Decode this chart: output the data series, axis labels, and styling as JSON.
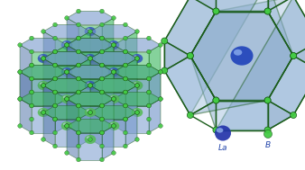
{
  "bg_color": "#ffffff",
  "left_panel": {
    "cage_face_color_blue": "#7799cc",
    "cage_face_color_green": "#44bb66",
    "cage_face_color_blue2": "#5577aa",
    "cage_face_color_green2": "#33aa55",
    "cage_edge_color": "#1a5c1a",
    "la_sphere_color": "#3355bb",
    "la_sphere_highlight": "#ccddf0",
    "b_green_sphere": "#44cc44",
    "b_green_highlight": "#aaffaa"
  },
  "right_panel": {
    "cage_face_color": "#88aacc",
    "cage_face_color2": "#99bbdd",
    "cage_edge_color": "#1a5c1a",
    "la_sphere_color": "#2244bb",
    "la_highlight": "#aaccff",
    "b_node_color": "#44cc44",
    "b_node_edge": "#115511"
  },
  "legend": {
    "la_label": "La",
    "b_label": "B",
    "la_color_dark": "#2233aa",
    "la_color_light": "#aaccff",
    "b_color": "#44cc44",
    "label_color": "#2244aa",
    "font_size": 6.5
  }
}
